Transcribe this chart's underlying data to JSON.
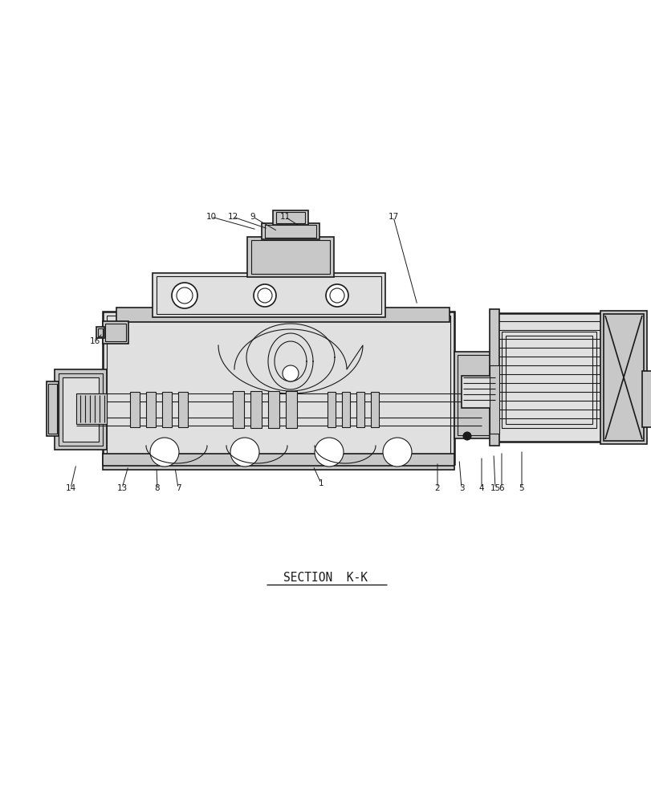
{
  "bg_color": "#ffffff",
  "line_color": "#1a1a1a",
  "fill_light": "#e0e0e0",
  "fill_mid": "#c8c8c8",
  "fill_dark": "#a8a8a8",
  "section_label": "SECTION  K-K",
  "fig_width": 8.12,
  "fig_height": 10.0,
  "dpi": 100
}
